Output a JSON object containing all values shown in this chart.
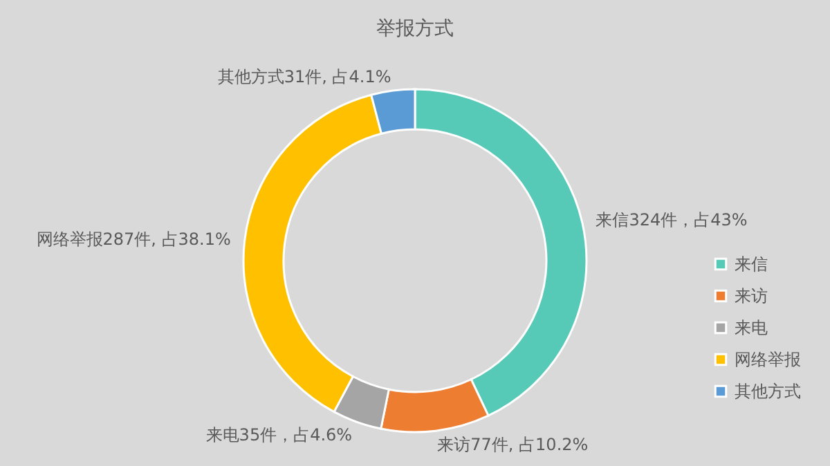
{
  "chart_data": {
    "type": "donut",
    "title": "举报方式",
    "categories": [
      "来信",
      "来访",
      "来电",
      "网络举报",
      "其他方式"
    ],
    "values": [
      324,
      77,
      35,
      287,
      31
    ],
    "colors": [
      "#57c9b7",
      "#ed7d31",
      "#a5a5a5",
      "#ffc000",
      "#5b9bd5"
    ],
    "value_labels": [
      "来信324件，占43%",
      "来访77件, 占10.2%",
      "来电35件，占4.6%",
      "网络举报287件, 占38.1%",
      "其他方式31件, 占4.1%"
    ],
    "legend": "right"
  }
}
